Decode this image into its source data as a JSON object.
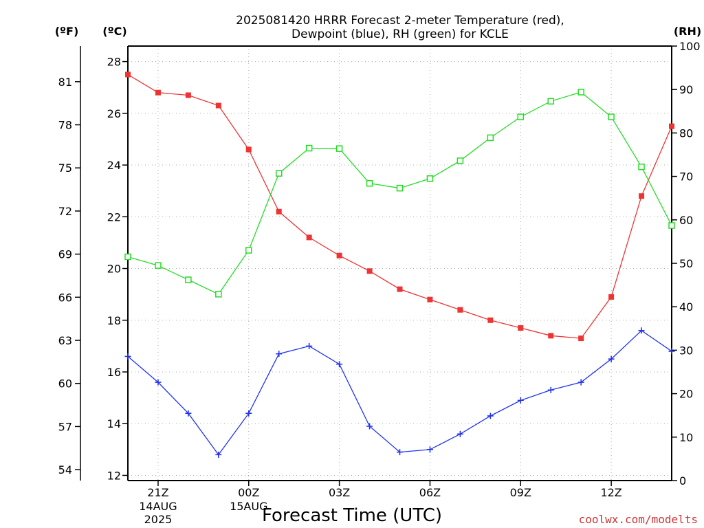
{
  "chart_data": {
    "type": "line",
    "title": [
      "2025081420 HRRR Forecast 2-meter Temperature (red),",
      "Dewpoint (blue), RH (green) for KCLE"
    ],
    "xlabel": "Forecast Time (UTC)",
    "credit": "coolwx.com/modelts",
    "unit_f": "(ºF)",
    "unit_c": "(ºC)",
    "unit_rh": "(RH)",
    "x_ticks": [
      {
        "index": 1,
        "label": "21Z",
        "sub": [
          "14AUG",
          "2025"
        ]
      },
      {
        "index": 4,
        "label": "00Z",
        "sub": [
          "15AUG"
        ]
      },
      {
        "index": 7,
        "label": "03Z",
        "sub": []
      },
      {
        "index": 10,
        "label": "06Z",
        "sub": []
      },
      {
        "index": 13,
        "label": "09Z",
        "sub": []
      },
      {
        "index": 16,
        "label": "12Z",
        "sub": []
      }
    ],
    "x_range": [
      0,
      18
    ],
    "y_celsius": {
      "range": [
        11.8,
        28.6
      ],
      "ticks": [
        "12",
        "14",
        "16",
        "18",
        "20",
        "22",
        "24",
        "26",
        "28"
      ]
    },
    "y_fahrenheit": {
      "ticks": [
        "54",
        "57",
        "60",
        "63",
        "66",
        "69",
        "72",
        "75",
        "78",
        "81"
      ]
    },
    "y_rh": {
      "range": [
        0,
        100
      ],
      "ticks": [
        "0",
        "10",
        "20",
        "30",
        "40",
        "50",
        "60",
        "70",
        "80",
        "90",
        "100"
      ]
    },
    "grid": true,
    "series": [
      {
        "name": "Temperature",
        "axis": "celsius",
        "color": "#ee3333",
        "marker": "filled-square",
        "values": [
          27.5,
          26.8,
          26.7,
          26.3,
          24.6,
          22.2,
          21.2,
          20.5,
          19.9,
          19.2,
          18.8,
          18.4,
          18.0,
          17.7,
          17.4,
          17.3,
          18.9,
          22.8,
          25.5
        ]
      },
      {
        "name": "Dewpoint",
        "axis": "celsius",
        "color": "#2233ee",
        "marker": "plus",
        "values": [
          16.6,
          15.6,
          14.4,
          12.8,
          14.4,
          16.7,
          17.0,
          16.3,
          13.9,
          12.9,
          13.0,
          13.6,
          14.3,
          14.9,
          15.3,
          15.6,
          16.5,
          17.6,
          16.8
        ]
      },
      {
        "name": "RH",
        "axis": "rh",
        "color": "#22dd22",
        "marker": "open-square",
        "values": [
          51.5,
          49.5,
          46.2,
          42.9,
          53.0,
          70.7,
          76.5,
          76.4,
          68.4,
          67.3,
          69.5,
          73.6,
          78.9,
          83.7,
          87.3,
          89.4,
          83.7,
          72.2,
          58.7
        ]
      }
    ]
  }
}
